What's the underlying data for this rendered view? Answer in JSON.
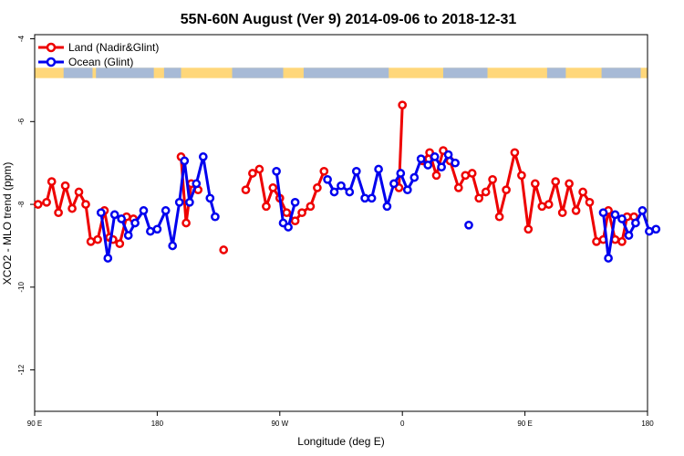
{
  "chart_data": {
    "type": "line",
    "title": "55N-60N August (Ver 9)   2014-09-06 to 2018-12-31",
    "xlabel": "Longitude (deg E)",
    "ylabel": "XCO2 - MLO trend (ppm)",
    "xlim": [
      90,
      450
    ],
    "ylim": [
      -13,
      -3.9
    ],
    "x_ticks": [
      {
        "value": 90,
        "label": "90 E"
      },
      {
        "value": 162,
        "label": "180"
      },
      {
        "value": 234,
        "label": "90 W"
      },
      {
        "value": 306,
        "label": "0"
      },
      {
        "value": 378,
        "label": "90 E"
      },
      {
        "value": 450,
        "label": "180"
      }
    ],
    "y_ticks": [
      {
        "value": -4,
        "label": "-4"
      },
      {
        "value": -6,
        "label": "-6"
      },
      {
        "value": -8,
        "label": "-8"
      },
      {
        "value": -10,
        "label": "-10"
      },
      {
        "value": -12,
        "label": "-12"
      }
    ],
    "legend": {
      "position": "top-left"
    },
    "grid": false,
    "land_strip": {
      "y_from": -4.7,
      "y_to": -4.95,
      "land_color": "#FFD77A",
      "ocean_color": "#A7BAD6"
    },
    "series": [
      {
        "name": "Land (Nadir&Glint)",
        "color": "#EE0000",
        "segments": [
          [
            [
              92,
              -8.0
            ],
            [
              97,
              -7.95
            ],
            [
              100,
              -7.45
            ],
            [
              104,
              -8.2
            ],
            [
              108,
              -7.55
            ],
            [
              112,
              -8.1
            ],
            [
              116,
              -7.7
            ],
            [
              120,
              -8.0
            ],
            [
              123,
              -8.9
            ],
            [
              127,
              -8.85
            ],
            [
              131,
              -8.15
            ],
            [
              134,
              -8.8
            ],
            [
              136,
              -8.85
            ],
            [
              140,
              -8.95
            ],
            [
              144,
              -8.3
            ],
            [
              148,
              -8.35
            ]
          ],
          [
            [
              176,
              -6.85
            ],
            [
              179,
              -8.45
            ],
            [
              182,
              -7.5
            ],
            [
              186,
              -7.65
            ]
          ],
          [
            [
              201,
              -9.1
            ]
          ],
          [
            [
              214,
              -7.65
            ],
            [
              218,
              -7.25
            ],
            [
              222,
              -7.15
            ],
            [
              226,
              -8.05
            ],
            [
              230,
              -7.6
            ],
            [
              234,
              -7.85
            ],
            [
              238,
              -8.2
            ],
            [
              243,
              -8.4
            ],
            [
              247,
              -8.2
            ],
            [
              252,
              -8.05
            ],
            [
              256,
              -7.6
            ],
            [
              260,
              -7.2
            ]
          ],
          [
            [
              304,
              -7.6
            ],
            [
              306,
              -5.6
            ]
          ],
          [
            [
              318,
              -6.95
            ],
            [
              322,
              -6.75
            ],
            [
              326,
              -7.3
            ],
            [
              330,
              -6.7
            ],
            [
              334,
              -6.95
            ],
            [
              339,
              -7.6
            ],
            [
              343,
              -7.3
            ],
            [
              347,
              -7.25
            ],
            [
              351,
              -7.85
            ],
            [
              355,
              -7.7
            ],
            [
              359,
              -7.4
            ],
            [
              363,
              -8.3
            ],
            [
              367,
              -7.65
            ],
            [
              372,
              -6.75
            ],
            [
              376,
              -7.3
            ],
            [
              380,
              -8.6
            ],
            [
              384,
              -7.5
            ],
            [
              388,
              -8.05
            ],
            [
              392,
              -8.0
            ],
            [
              396,
              -7.45
            ],
            [
              400,
              -8.2
            ],
            [
              404,
              -7.5
            ],
            [
              408,
              -8.15
            ],
            [
              412,
              -7.7
            ],
            [
              416,
              -7.95
            ],
            [
              420,
              -8.9
            ],
            [
              424,
              -8.85
            ],
            [
              427,
              -8.15
            ],
            [
              431,
              -8.85
            ],
            [
              435,
              -8.9
            ],
            [
              438,
              -8.3
            ],
            [
              442,
              -8.3
            ]
          ]
        ]
      },
      {
        "name": "Ocean (Glint)",
        "color": "#0000EE",
        "segments": [
          [
            [
              129,
              -8.2
            ],
            [
              133,
              -9.3
            ],
            [
              137,
              -8.25
            ],
            [
              141,
              -8.35
            ],
            [
              145,
              -8.75
            ],
            [
              149,
              -8.45
            ],
            [
              154,
              -8.15
            ],
            [
              158,
              -8.65
            ],
            [
              162,
              -8.6
            ],
            [
              167,
              -8.15
            ],
            [
              171,
              -9.0
            ],
            [
              175,
              -7.95
            ],
            [
              178,
              -6.95
            ],
            [
              181,
              -7.95
            ],
            [
              185,
              -7.5
            ],
            [
              189,
              -6.85
            ],
            [
              193,
              -7.85
            ],
            [
              196,
              -8.3
            ]
          ],
          [
            [
              232,
              -7.2
            ],
            [
              236,
              -8.45
            ],
            [
              239,
              -8.55
            ],
            [
              243,
              -7.95
            ]
          ],
          [
            [
              262,
              -7.4
            ],
            [
              266,
              -7.7
            ],
            [
              270,
              -7.55
            ],
            [
              275,
              -7.7
            ],
            [
              279,
              -7.2
            ],
            [
              284,
              -7.85
            ],
            [
              288,
              -7.85
            ],
            [
              292,
              -7.15
            ],
            [
              297,
              -8.05
            ],
            [
              301,
              -7.5
            ],
            [
              305,
              -7.25
            ],
            [
              309,
              -7.65
            ],
            [
              313,
              -7.35
            ],
            [
              317,
              -6.9
            ],
            [
              321,
              -7.05
            ],
            [
              325,
              -6.85
            ],
            [
              329,
              -7.1
            ],
            [
              333,
              -6.8
            ],
            [
              337,
              -7.0
            ]
          ],
          [
            [
              345,
              -8.5
            ]
          ],
          [
            [
              424,
              -8.2
            ],
            [
              427,
              -9.3
            ],
            [
              431,
              -8.25
            ],
            [
              435,
              -8.35
            ],
            [
              439,
              -8.75
            ],
            [
              443,
              -8.45
            ],
            [
              447,
              -8.15
            ],
            [
              451,
              -8.65
            ],
            [
              455,
              -8.6
            ]
          ]
        ]
      }
    ]
  }
}
